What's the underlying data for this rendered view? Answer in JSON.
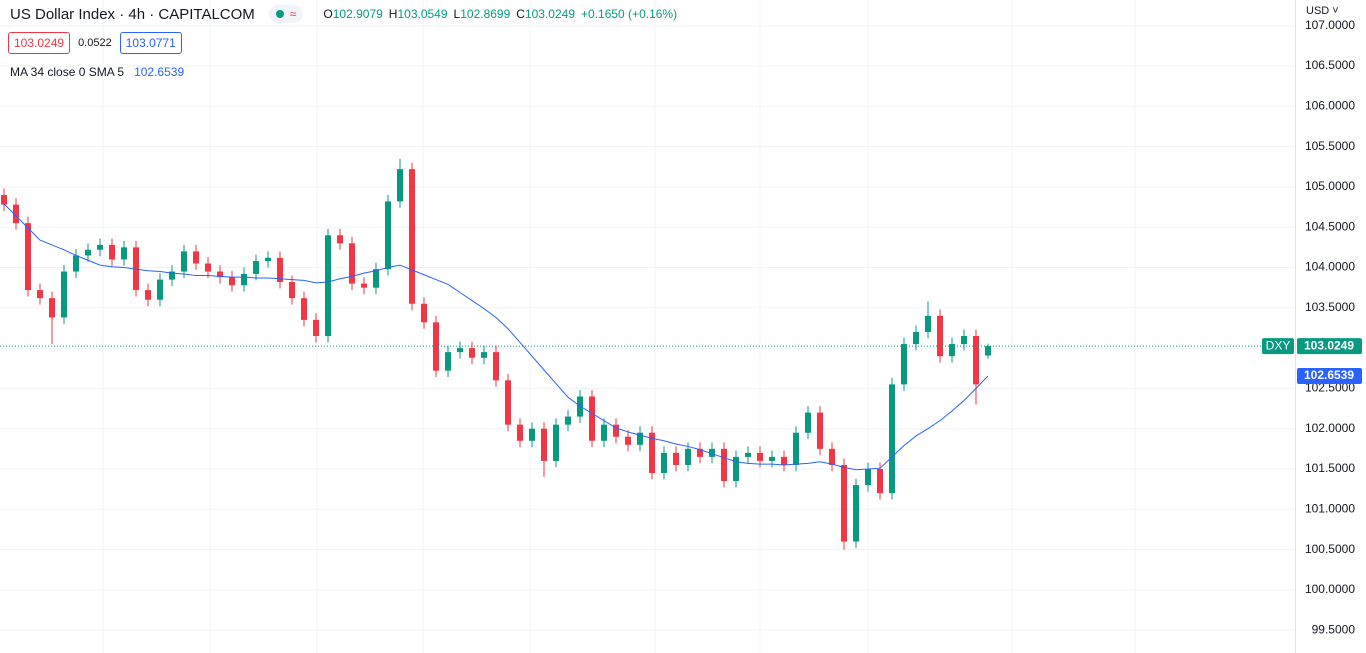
{
  "chart_data": {
    "type": "candlestick",
    "title": "US Dollar Index · 4h · CAPITALCOM",
    "currency": "USD",
    "change_label": "+0.1650 (+0.16%)",
    "spread": 0.0522,
    "ask": 103.0771,
    "ylim": [
      99.217,
      107.319
    ],
    "yticks": [
      {
        "value": 99.5,
        "label": "99.5000"
      },
      {
        "value": 100,
        "label": "100.0000"
      },
      {
        "value": 100.5,
        "label": "100.5000"
      },
      {
        "value": 101,
        "label": "101.0000"
      },
      {
        "value": 101.5,
        "label": "101.5000"
      },
      {
        "value": 102,
        "label": "102.0000"
      },
      {
        "value": 102.5,
        "label": "102.5000"
      },
      {
        "value": 103,
        "label": "103.0000"
      },
      {
        "value": 103.5,
        "label": "103.5000"
      },
      {
        "value": 104,
        "label": "104.0000"
      },
      {
        "value": 104.5,
        "label": "104.5000"
      },
      {
        "value": 105,
        "label": "105.0000"
      },
      {
        "value": 105.5,
        "label": "105.5000"
      },
      {
        "value": 106,
        "label": "106.0000"
      },
      {
        "value": 106.5,
        "label": "106.5000"
      },
      {
        "value": 107,
        "label": "107.0000"
      }
    ],
    "grid": true,
    "series": [
      {
        "name": "DXY",
        "up_color": "#089981",
        "down_color": "#f23645",
        "open": [
          104.9,
          104.78,
          104.55,
          103.72,
          103.62,
          103.38,
          103.95,
          104.15,
          104.22,
          104.28,
          104.1,
          104.25,
          103.72,
          103.6,
          103.85,
          103.95,
          104.2,
          104.05,
          103.95,
          103.88,
          103.78,
          103.92,
          104.08,
          104.12,
          103.82,
          103.62,
          103.35,
          103.15,
          104.4,
          104.3,
          103.8,
          103.75,
          103.98,
          104.82,
          105.22,
          103.55,
          103.32,
          102.72,
          102.95,
          103.0,
          102.88,
          102.95,
          102.6,
          102.05,
          101.85,
          102.0,
          101.6,
          102.05,
          102.15,
          102.4,
          101.85,
          102.05,
          101.9,
          101.8,
          101.95,
          101.45,
          101.7,
          101.55,
          101.75,
          101.65,
          101.75,
          101.35,
          101.65,
          101.7,
          101.6,
          101.65,
          101.55,
          101.95,
          102.2,
          101.75,
          101.55,
          100.6,
          101.3,
          101.5,
          101.2,
          102.55,
          103.05,
          103.2,
          103.4,
          102.9,
          103.05,
          103.15,
          102.9079
        ],
        "high": [
          104.98,
          104.86,
          104.63,
          103.8,
          103.7,
          104.03,
          104.23,
          104.3,
          104.36,
          104.36,
          104.33,
          104.33,
          103.8,
          103.93,
          104.03,
          104.28,
          104.28,
          104.13,
          104.03,
          103.96,
          104.0,
          104.16,
          104.2,
          104.2,
          103.9,
          103.7,
          103.43,
          104.48,
          104.48,
          104.38,
          103.88,
          104.06,
          104.9,
          105.35,
          105.3,
          103.63,
          103.4,
          103.03,
          103.08,
          103.08,
          103.03,
          103.03,
          102.68,
          102.13,
          102.08,
          102.08,
          102.13,
          102.23,
          102.48,
          102.48,
          102.13,
          102.13,
          101.98,
          102.03,
          102.03,
          101.78,
          101.78,
          101.83,
          101.83,
          101.83,
          101.83,
          101.73,
          101.78,
          101.78,
          101.73,
          101.73,
          102.03,
          102.28,
          102.28,
          101.83,
          101.63,
          101.38,
          101.58,
          101.58,
          102.63,
          103.13,
          103.28,
          103.58,
          103.48,
          103.13,
          103.23,
          103.23,
          103.0549
        ],
        "low": [
          104.7,
          104.47,
          103.64,
          103.54,
          103.05,
          103.3,
          103.87,
          104.07,
          104.14,
          104.02,
          104.02,
          103.64,
          103.52,
          103.52,
          103.77,
          103.87,
          103.97,
          103.87,
          103.8,
          103.7,
          103.7,
          103.84,
          104.0,
          103.74,
          103.54,
          103.27,
          103.07,
          103.07,
          104.22,
          103.72,
          103.67,
          103.67,
          103.9,
          104.74,
          103.47,
          103.24,
          102.64,
          102.64,
          102.87,
          102.8,
          102.8,
          102.52,
          101.97,
          101.77,
          101.77,
          101.4,
          101.52,
          101.97,
          102.07,
          101.77,
          101.77,
          101.82,
          101.72,
          101.72,
          101.37,
          101.37,
          101.47,
          101.47,
          101.57,
          101.57,
          101.27,
          101.27,
          101.57,
          101.52,
          101.52,
          101.47,
          101.47,
          101.87,
          101.67,
          101.47,
          100.5,
          100.52,
          101.22,
          101.12,
          101.12,
          102.47,
          102.97,
          103.12,
          102.82,
          102.82,
          102.97,
          102.3,
          102.8699
        ],
        "close": [
          104.78,
          104.55,
          103.72,
          103.62,
          103.38,
          103.95,
          104.15,
          104.22,
          104.28,
          104.1,
          104.25,
          103.72,
          103.6,
          103.85,
          103.95,
          104.2,
          104.05,
          103.95,
          103.88,
          103.78,
          103.92,
          104.08,
          104.12,
          103.82,
          103.62,
          103.35,
          103.15,
          104.4,
          104.3,
          103.8,
          103.75,
          103.98,
          104.82,
          105.22,
          103.55,
          103.32,
          102.72,
          102.95,
          103.0,
          102.88,
          102.95,
          102.6,
          102.05,
          101.85,
          102.0,
          101.6,
          102.05,
          102.15,
          102.4,
          101.85,
          102.05,
          101.9,
          101.8,
          101.95,
          101.45,
          101.7,
          101.55,
          101.75,
          101.65,
          101.75,
          101.35,
          101.65,
          101.7,
          101.6,
          101.65,
          101.55,
          101.95,
          102.2,
          101.75,
          101.55,
          100.6,
          101.3,
          101.5,
          101.2,
          102.55,
          103.05,
          103.2,
          103.4,
          102.9,
          103.05,
          103.15,
          102.55,
          103.0249
        ]
      },
      {
        "name": "MA 34 close 0 SMA 5",
        "color": "#2962ff",
        "values": [
          104.79,
          104.64,
          104.49,
          104.34,
          104.28,
          104.22,
          104.15,
          104.09,
          104.03,
          104.01,
          104.0,
          103.98,
          103.96,
          103.95,
          103.93,
          103.92,
          103.9,
          103.9,
          103.89,
          103.88,
          103.88,
          103.87,
          103.87,
          103.86,
          103.85,
          103.84,
          103.81,
          103.82,
          103.86,
          103.89,
          103.93,
          103.96,
          104.0,
          104.03,
          103.97,
          103.91,
          103.85,
          103.79,
          103.69,
          103.59,
          103.49,
          103.38,
          103.24,
          103.07,
          102.9,
          102.73,
          102.56,
          102.39,
          102.28,
          102.19,
          102.1,
          102.01,
          101.96,
          101.92,
          101.88,
          101.85,
          101.81,
          101.78,
          101.74,
          101.69,
          101.64,
          101.59,
          101.57,
          101.56,
          101.56,
          101.55,
          101.56,
          101.57,
          101.59,
          101.56,
          101.52,
          101.49,
          101.5,
          101.51,
          101.65,
          101.79,
          101.91,
          102.0,
          102.1,
          102.22,
          102.35,
          102.5,
          102.6539
        ]
      }
    ]
  }
}
